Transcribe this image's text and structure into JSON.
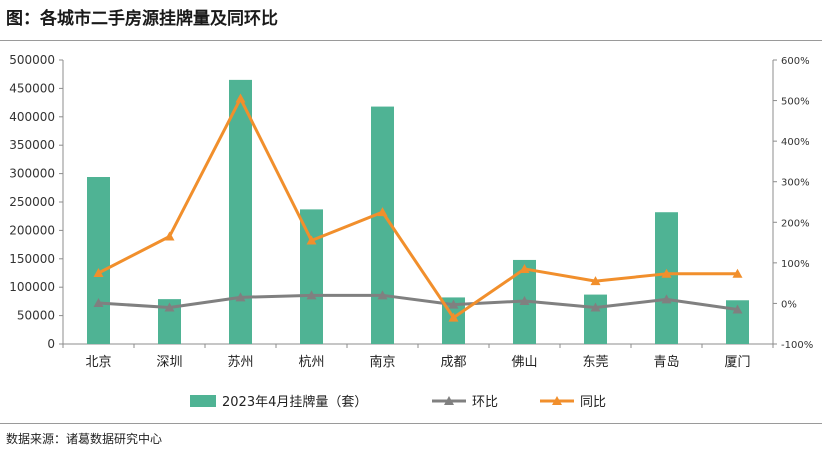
{
  "title": "图：各城市二手房源挂牌量及同环比",
  "source": "数据来源：诸葛数据研究中心",
  "chart_data": {
    "type": "bar",
    "categories": [
      "北京",
      "深圳",
      "苏州",
      "杭州",
      "南京",
      "成都",
      "佛山",
      "东莞",
      "青岛",
      "厦门"
    ],
    "left_axis": {
      "ylim": [
        0,
        500000
      ],
      "ticks": [
        "0",
        "50000",
        "100000",
        "150000",
        "200000",
        "250000",
        "300000",
        "350000",
        "400000",
        "450000",
        "500000"
      ]
    },
    "right_axis": {
      "ylim": [
        -100,
        600
      ],
      "unit": "%",
      "ticks": [
        "-100%",
        "0%",
        "100%",
        "200%",
        "300%",
        "400%",
        "500%",
        "600%"
      ]
    },
    "series": [
      {
        "name": "2023年4月挂牌量（套）",
        "type": "bar",
        "axis": "left",
        "color": "#4fb394",
        "values": [
          294000,
          79000,
          465000,
          237000,
          418000,
          82000,
          148000,
          87000,
          232000,
          77000
        ]
      },
      {
        "name": "环比",
        "type": "line",
        "axis": "right",
        "color": "#808080",
        "values": [
          1,
          -10,
          15,
          20,
          20,
          -3,
          6,
          -10,
          10,
          -15
        ]
      },
      {
        "name": "同比",
        "type": "line",
        "axis": "right",
        "color": "#f18f2c",
        "values": [
          75,
          165,
          505,
          155,
          225,
          -35,
          85,
          55,
          73,
          73
        ]
      }
    ],
    "legend_position": "bottom",
    "grid": false
  }
}
